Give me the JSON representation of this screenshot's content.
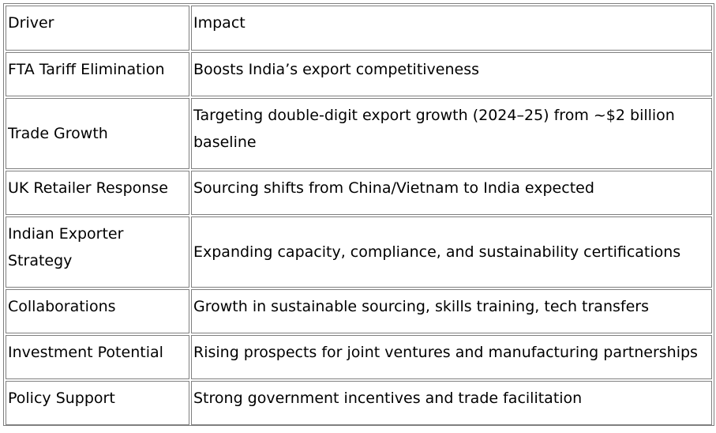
{
  "table": {
    "header": {
      "driver": "Driver",
      "impact": "Impact"
    },
    "rows": [
      {
        "driver": "FTA Tariff Elimination",
        "impact": "Boosts India’s export competitiveness"
      },
      {
        "driver": "Trade Growth",
        "impact": "Targeting double-digit export growth (2024–25) from ~$2 billion baseline"
      },
      {
        "driver": "UK Retailer Response",
        "impact": "Sourcing shifts from China/Vietnam to India expected"
      },
      {
        "driver": "Indian Exporter Strategy",
        "impact": "Expanding capacity, compliance, and sustainability certifications"
      },
      {
        "driver": "Collaborations",
        "impact": "Growth in sustainable sourcing, skills training, tech transfers"
      },
      {
        "driver": "Investment Potential",
        "impact": "Rising prospects for joint ventures and manufacturing partnerships"
      },
      {
        "driver": "Policy Support",
        "impact": "Strong government incentives and trade facilitation"
      }
    ]
  }
}
